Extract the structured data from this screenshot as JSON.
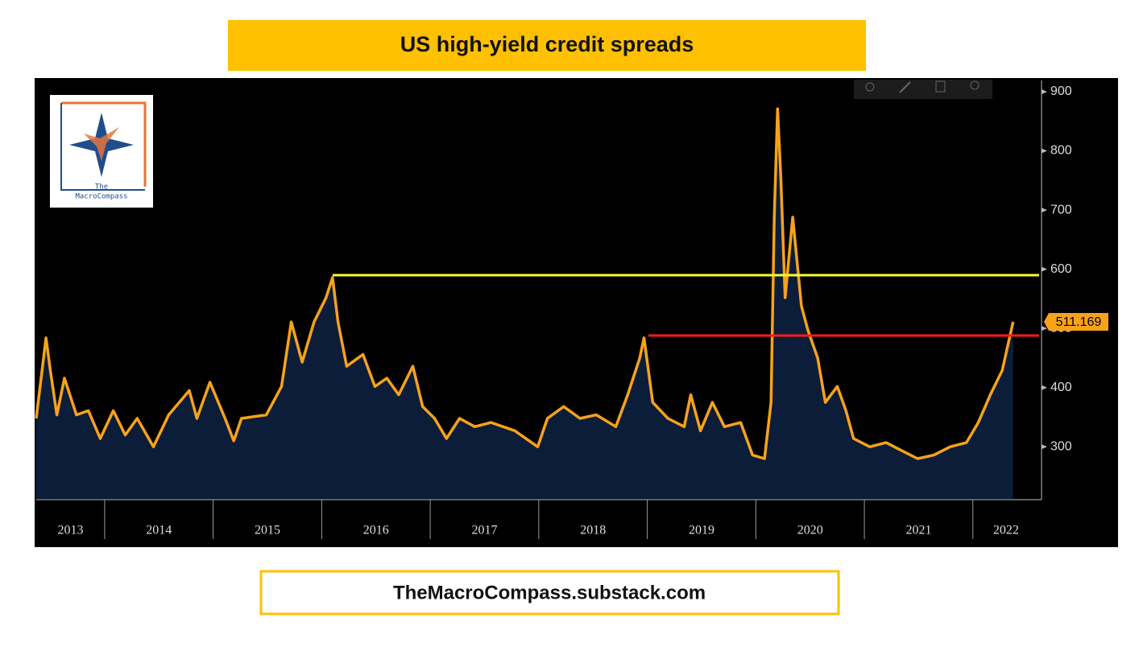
{
  "chart_data": {
    "type": "line",
    "title": "US high-yield credit spreads",
    "footer": "TheMacroCompass.substack.com",
    "logo_lines": [
      "The",
      "MacroCompass"
    ],
    "xlim": [
      2013.37,
      2022.61
    ],
    "xticks": [
      2013,
      2014,
      2015,
      2016,
      2017,
      2018,
      2019,
      2020,
      2021,
      2022
    ],
    "ylim": [
      212,
      919
    ],
    "yticks": [
      300,
      400,
      500,
      600,
      700,
      800,
      900
    ],
    "series": [
      {
        "color": "#f7a21b",
        "fill_color": "#0b1d38",
        "x": [
          2013.37,
          2013.46,
          2013.5,
          2013.56,
          2013.63,
          2013.74,
          2013.85,
          2013.96,
          2014.08,
          2014.19,
          2014.3,
          2014.45,
          2014.59,
          2014.78,
          2014.85,
          2014.97,
          2015.11,
          2015.19,
          2015.26,
          2015.49,
          2015.63,
          2015.72,
          2015.82,
          2015.93,
          2016.04,
          2016.1,
          2016.15,
          2016.23,
          2016.38,
          2016.49,
          2016.6,
          2016.71,
          2016.84,
          2016.93,
          2017.04,
          2017.15,
          2017.27,
          2017.41,
          2017.56,
          2017.78,
          2017.99,
          2018.08,
          2018.23,
          2018.38,
          2018.53,
          2018.71,
          2018.82,
          2018.93,
          2018.97,
          2019.05,
          2019.19,
          2019.34,
          2019.4,
          2019.49,
          2019.6,
          2019.71,
          2019.86,
          2019.97,
          2020.08,
          2020.14,
          2020.17,
          2020.2,
          2020.23,
          2020.27,
          2020.34,
          2020.42,
          2020.48,
          2020.57,
          2020.64,
          2020.75,
          2020.83,
          2020.9,
          2021.05,
          2021.2,
          2021.35,
          2021.49,
          2021.64,
          2021.79,
          2021.94,
          2022.05,
          2022.16,
          2022.27,
          2022.37
        ],
        "values": [
          348,
          484,
          429,
          354,
          416,
          354,
          361,
          314,
          361,
          320,
          348,
          300,
          354,
          395,
          348,
          409,
          348,
          310,
          348,
          354,
          402,
          511,
          443,
          511,
          552,
          586,
          511,
          436,
          456,
          402,
          416,
          388,
          436,
          368,
          348,
          314,
          348,
          334,
          341,
          327,
          300,
          348,
          368,
          348,
          354,
          334,
          388,
          450,
          484,
          375,
          348,
          334,
          388,
          327,
          375,
          334,
          341,
          286,
          280,
          375,
          688,
          871,
          756,
          552,
          688,
          538,
          497,
          450,
          375,
          402,
          361,
          314,
          300,
          307,
          293,
          280,
          286,
          300,
          307,
          341,
          388,
          429,
          511.169
        ]
      }
    ],
    "reference_lines": [
      {
        "value": 590,
        "from": 2016.1,
        "color": "#ffff33"
      },
      {
        "value": 488,
        "from": 2019.01,
        "color": "#ff1a1a"
      }
    ]
  }
}
